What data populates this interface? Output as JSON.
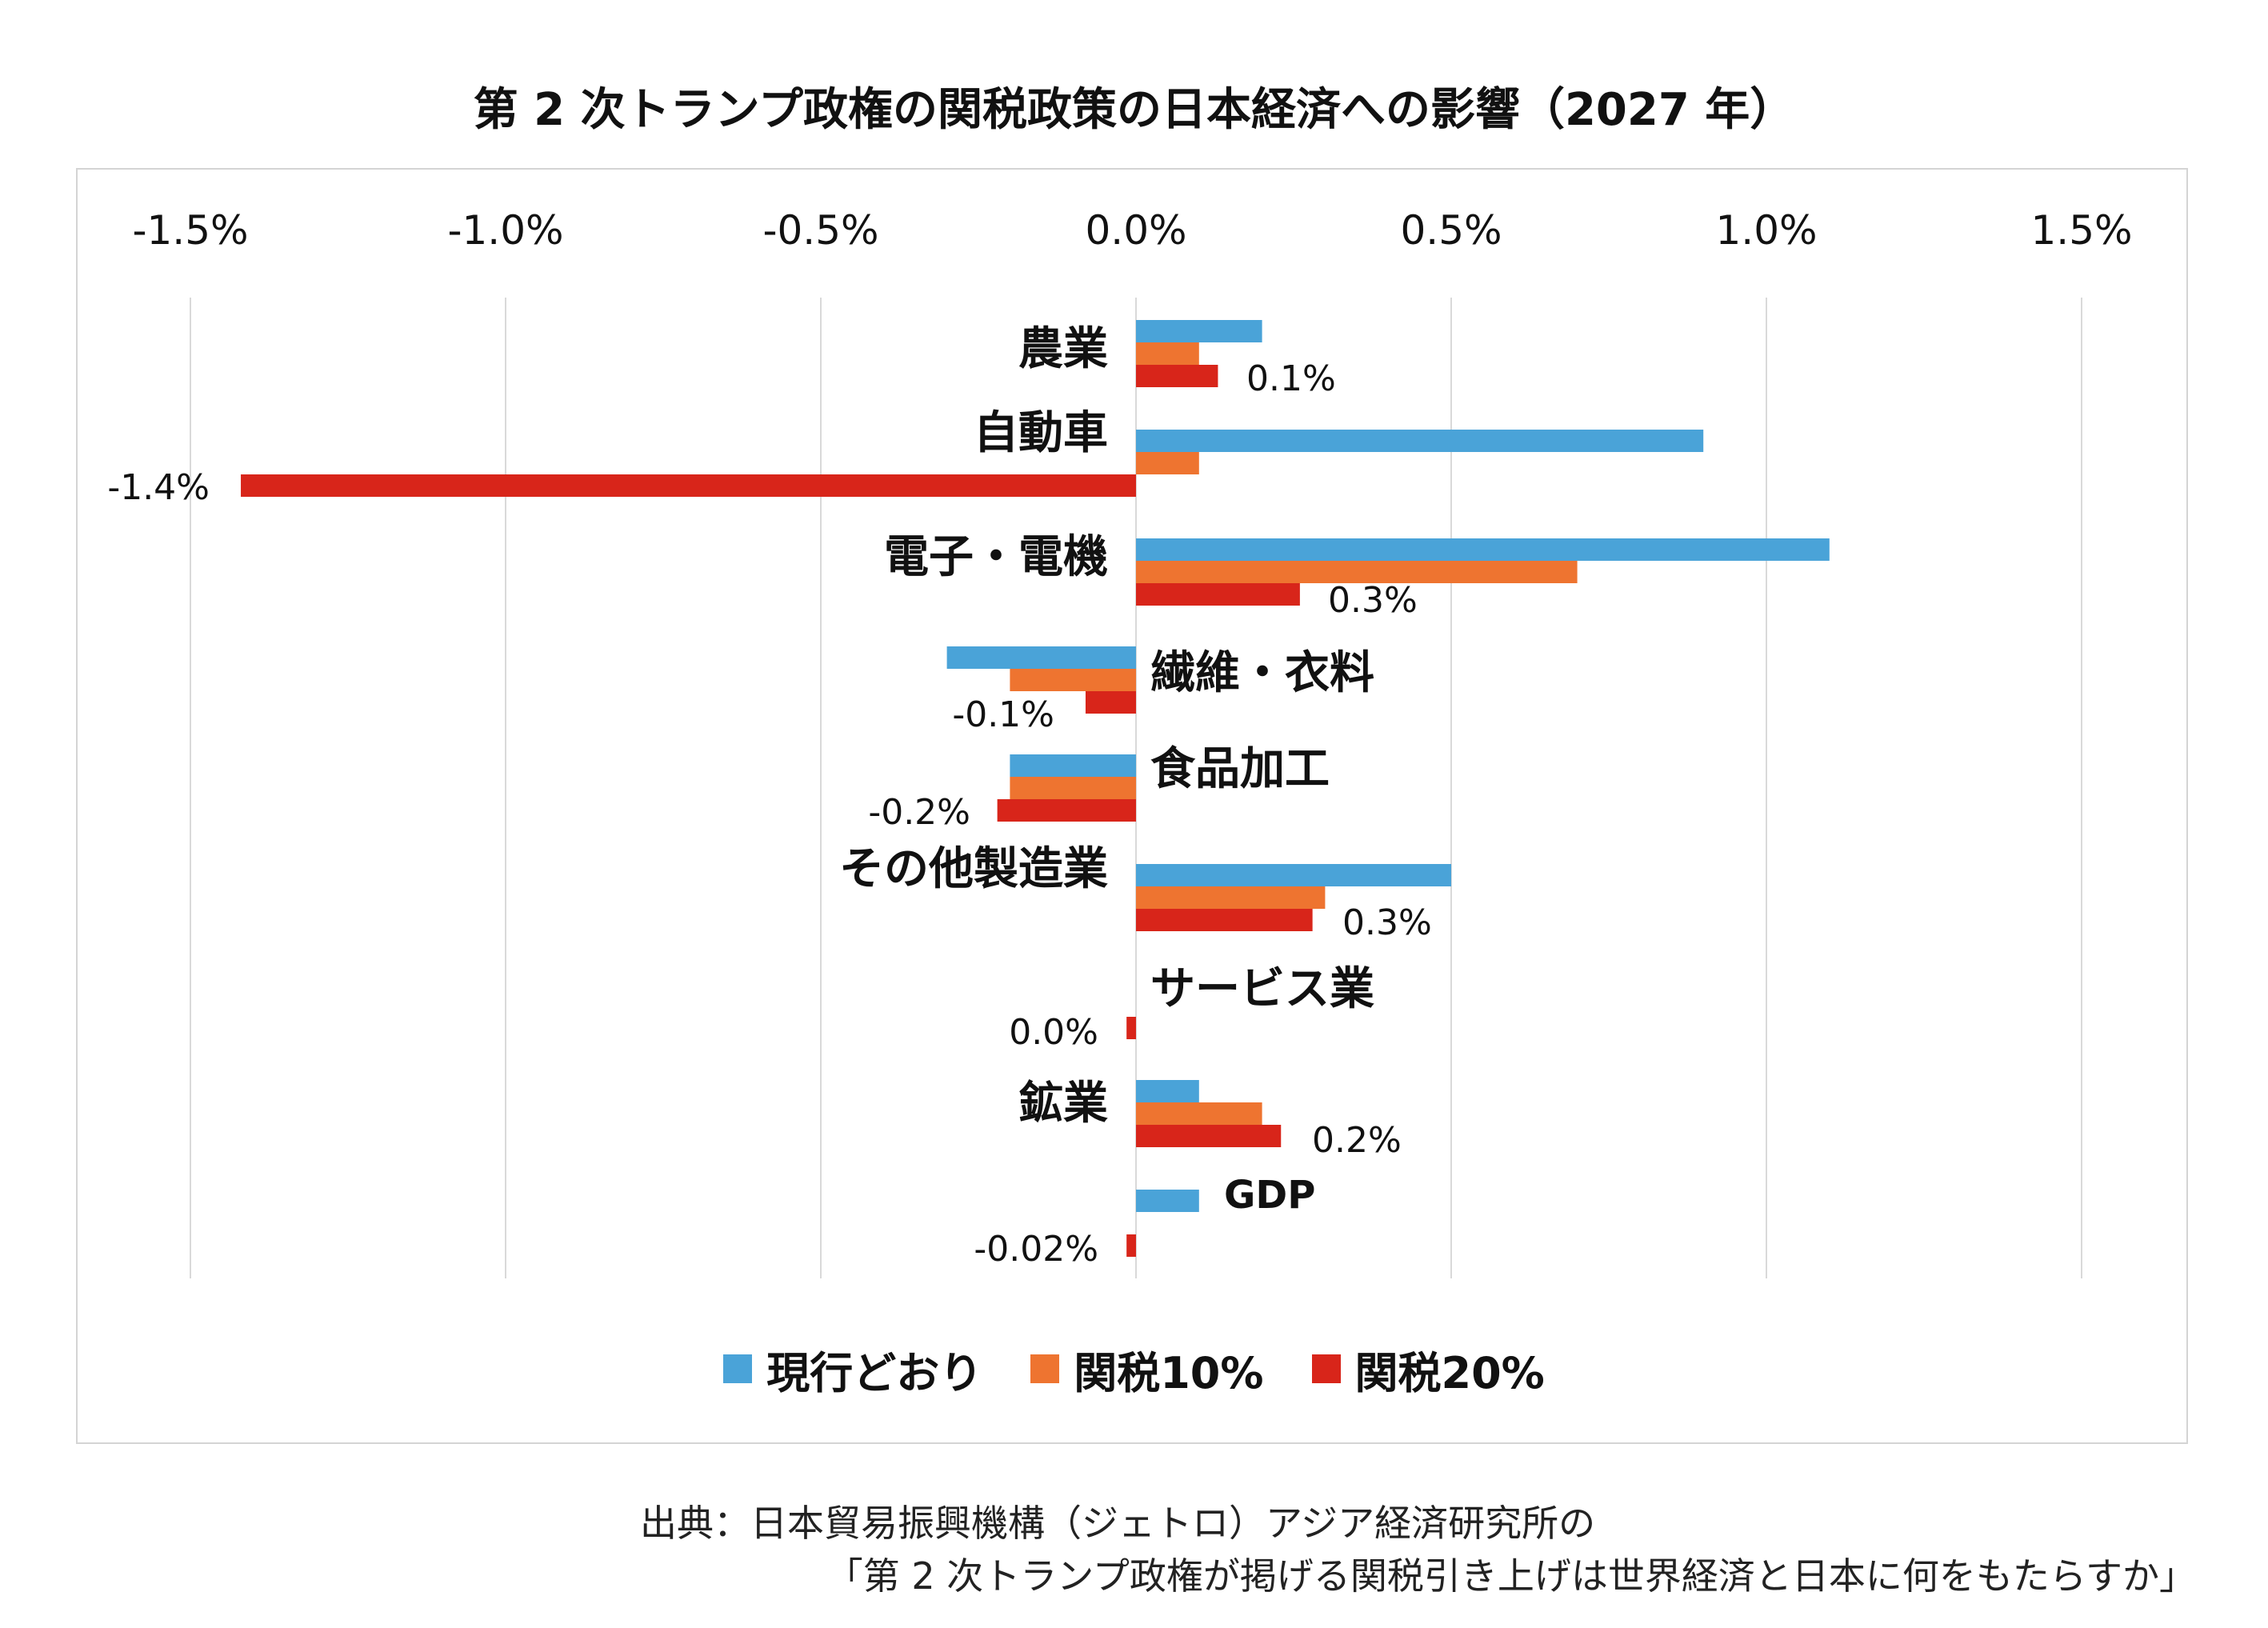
{
  "chart_data": {
    "type": "bar",
    "orientation": "horizontal",
    "title": "第 2 次トランプ政権の関税政策の日本経済への影響（2027 年）",
    "xlabel": "",
    "ylabel": "",
    "xlim": [
      -0.015,
      0.015
    ],
    "x_ticks": [
      "-1.5%",
      "-1.0%",
      "-0.5%",
      "0.0%",
      "0.5%",
      "1.0%",
      "1.5%"
    ],
    "x_tick_values": [
      -0.015,
      -0.01,
      -0.005,
      0.0,
      0.005,
      0.01,
      0.015
    ],
    "grid": "vertical",
    "legend_position": "bottom",
    "categories": [
      "農業",
      "自動車",
      "電子・電機",
      "繊維・衣料",
      "食品加工",
      "その他製造業",
      "サービス業",
      "鉱業",
      "GDP"
    ],
    "series": [
      {
        "name": "現行どおり",
        "color": "#4aa3d8",
        "values": [
          0.002,
          0.009,
          0.011,
          -0.003,
          -0.002,
          0.005,
          0.0,
          0.001,
          0.001
        ]
      },
      {
        "name": "関税10%",
        "color": "#ee7430",
        "values": [
          0.001,
          0.001,
          0.007,
          -0.002,
          -0.002,
          0.003,
          0.0,
          0.002,
          0.0
        ]
      },
      {
        "name": "関税20%",
        "color": "#d8251a",
        "values": [
          0.0013,
          -0.0142,
          0.0026,
          -0.0008,
          -0.0022,
          0.0028,
          -0.00015,
          0.0023,
          -0.00015
        ]
      }
    ],
    "data_labels": [
      "0.1%",
      "-1.4%",
      "0.3%",
      "-0.1%",
      "-0.2%",
      "0.3%",
      "0.0%",
      "0.2%",
      "-0.02%"
    ],
    "data_labels_series": "関税20%"
  },
  "source": {
    "line1": "出典：日本貿易振興機構（ジェトロ）アジア経済研究所の",
    "line2": "「第 2 次トランプ政権が掲げる関税引き上げは世界経済と日本に何をもたらすか」"
  }
}
